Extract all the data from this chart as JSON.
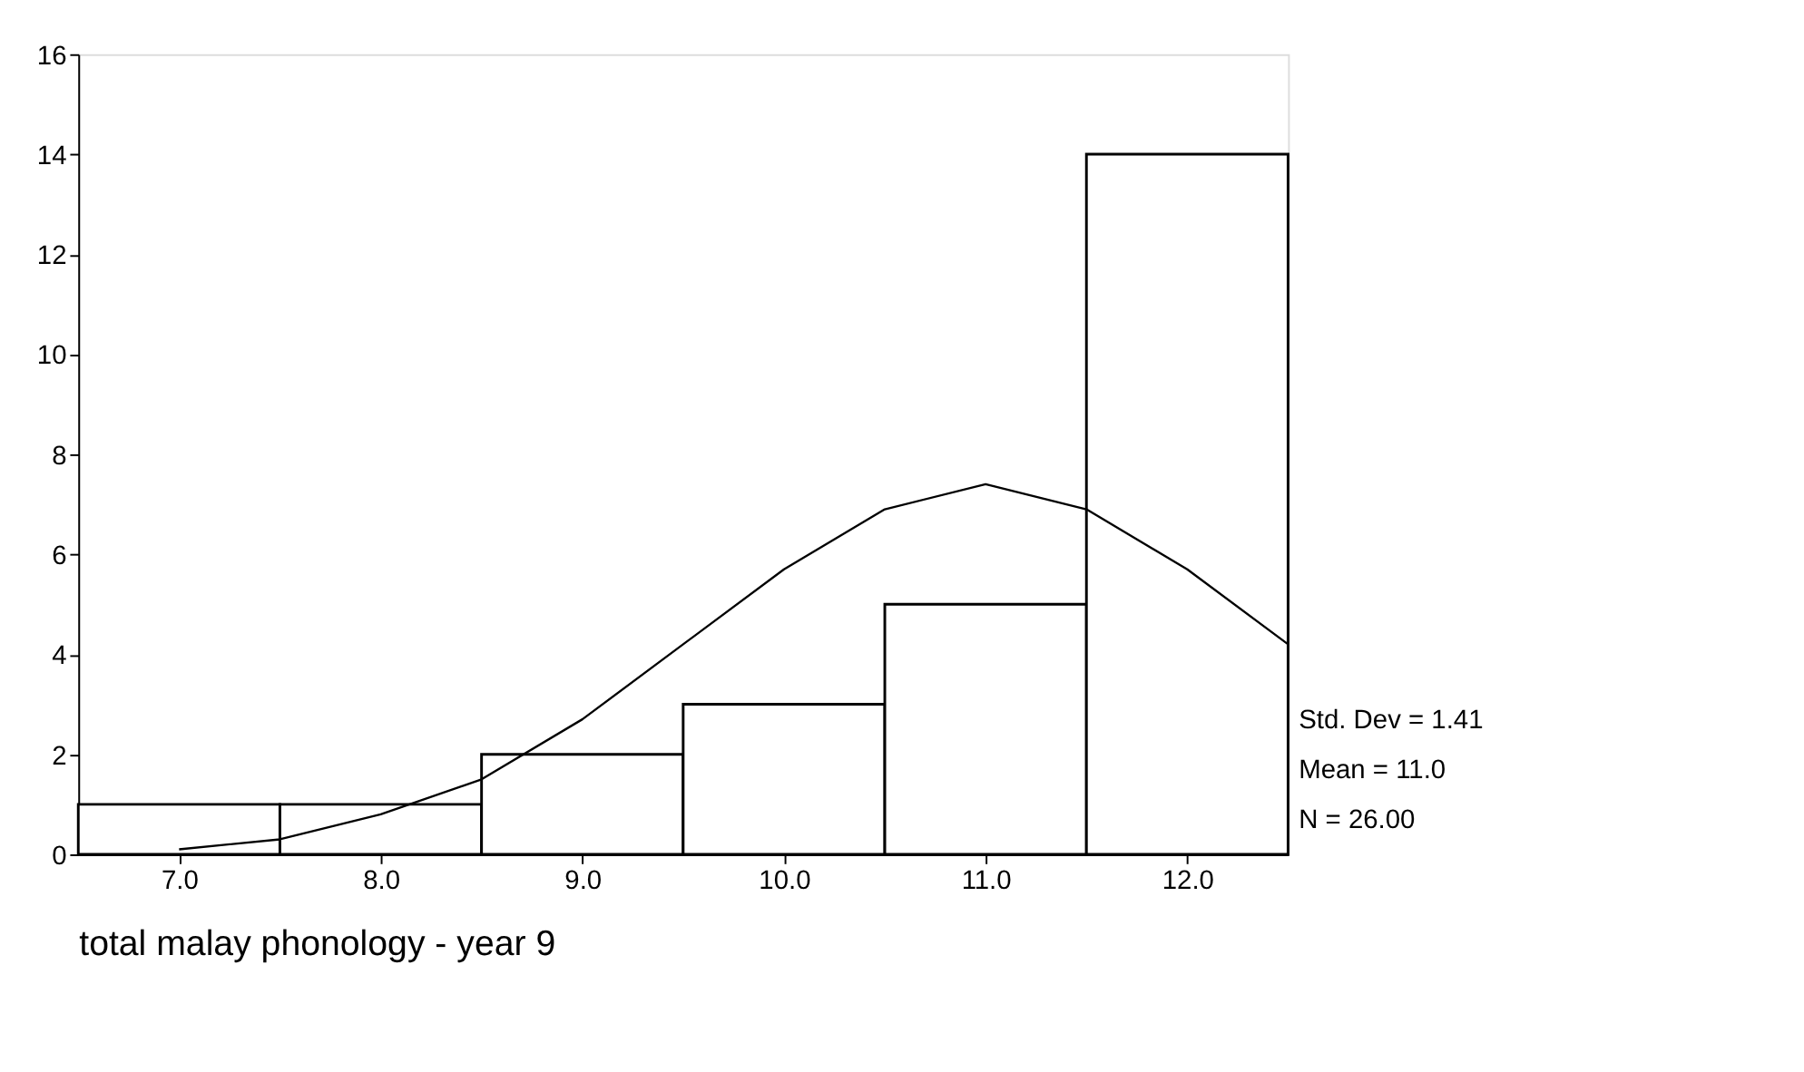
{
  "chart_data": {
    "type": "histogram",
    "xlabel": "total malay phonology - year 9",
    "bins": [
      6.5,
      7.5,
      8.5,
      9.5,
      10.5,
      11.5,
      12.5
    ],
    "values": [
      1,
      1,
      2,
      3,
      5,
      14
    ],
    "color": "#ffffff",
    "series": [
      {
        "type": "line",
        "color": "#000000",
        "x": [
          7.0,
          7.5,
          8.0,
          8.5,
          9.0,
          9.5,
          10.0,
          10.5,
          11.0,
          11.5,
          12.0,
          12.5
        ],
        "values": [
          0.1,
          0.3,
          0.8,
          1.5,
          2.7,
          4.2,
          5.7,
          6.9,
          7.4,
          6.9,
          5.7,
          4.2
        ]
      }
    ],
    "xlim": [
      6.5,
      12.5
    ],
    "xticks": [
      {
        "value": 7,
        "label": "7.0"
      },
      {
        "value": 8,
        "label": "8.0"
      },
      {
        "value": 9,
        "label": "9.0"
      },
      {
        "value": 10,
        "label": "10.0"
      },
      {
        "value": 11,
        "label": "11.0"
      },
      {
        "value": 12,
        "label": "12.0"
      }
    ],
    "ylim": [
      0,
      16
    ],
    "yticks": [
      0,
      2,
      4,
      6,
      8,
      10,
      12,
      14,
      16
    ],
    "grid": false,
    "annotations": [
      "Std. Dev = 1.41",
      "Mean = 11.0",
      "N = 26.00"
    ]
  }
}
